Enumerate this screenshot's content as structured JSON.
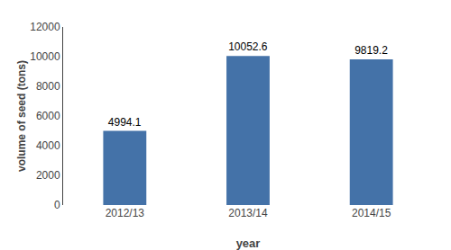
{
  "chart_data": {
    "type": "bar",
    "categories": [
      "2012/13",
      "2013/14",
      "2014/15"
    ],
    "values": [
      4994.1,
      10052.6,
      9819.2
    ],
    "color": "#4472a8",
    "xlabel": "year",
    "ylabel": "volume of seed (tons)",
    "ylim": [
      0,
      12000
    ],
    "yticks": [
      0,
      2000,
      4000,
      6000,
      8000,
      10000,
      12000
    ],
    "grid": false,
    "data_labels": true
  }
}
